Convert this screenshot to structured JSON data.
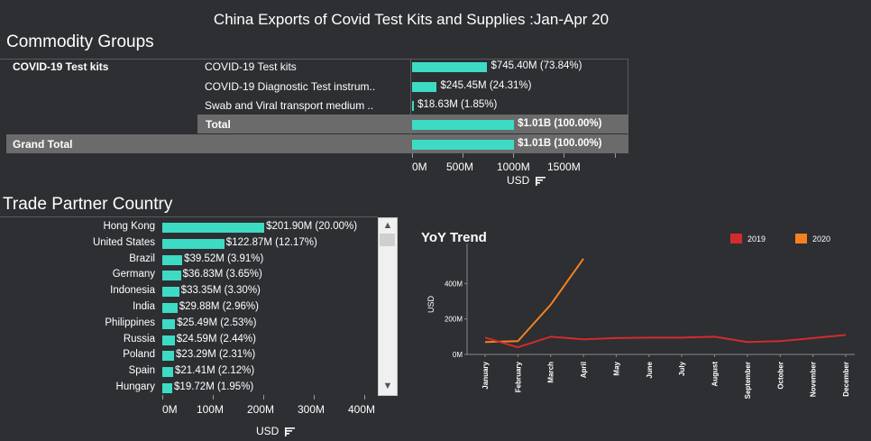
{
  "title": "China Exports of Covid Test Kits and Supplies :Jan-Apr 20",
  "commodity": {
    "section_title": "Commodity Groups",
    "group_label": "COVID-19 Test kits",
    "rows": [
      {
        "label": "COVID-19 Test kits",
        "value": 745.4,
        "text": "$745.40M (73.84%)"
      },
      {
        "label": "COVID-19 Diagnostic Test instrum..",
        "value": 245.45,
        "text": "$245.45M (24.31%)"
      },
      {
        "label": "Swab and Viral transport medium ..",
        "value": 18.63,
        "text": "$18.63M (1.85%)"
      }
    ],
    "total": {
      "label": "Total",
      "value": 1010,
      "text": "$1.01B (100.00%)"
    },
    "grand_total": {
      "label": "Grand Total",
      "value": 1010,
      "text": "$1.01B (100.00%)"
    },
    "axis_ticks": [
      "0M",
      "500M",
      "1000M",
      "1500M"
    ],
    "axis_label": "USD"
  },
  "partner": {
    "section_title": "Trade Partner Country",
    "rows": [
      {
        "label": "Hong Kong",
        "value": 201.9,
        "text": "$201.90M (20.00%)"
      },
      {
        "label": "United States",
        "value": 122.87,
        "text": "$122.87M (12.17%)"
      },
      {
        "label": "Brazil",
        "value": 39.52,
        "text": "$39.52M (3.91%)"
      },
      {
        "label": "Germany",
        "value": 36.83,
        "text": "$36.83M (3.65%)"
      },
      {
        "label": "Indonesia",
        "value": 33.35,
        "text": "$33.35M (3.30%)"
      },
      {
        "label": "India",
        "value": 29.88,
        "text": "$29.88M (2.96%)"
      },
      {
        "label": "Philippines",
        "value": 25.49,
        "text": "$25.49M (2.53%)"
      },
      {
        "label": "Russia",
        "value": 24.59,
        "text": "$24.59M (2.44%)"
      },
      {
        "label": "Poland",
        "value": 23.29,
        "text": "$23.29M (2.31%)"
      },
      {
        "label": "Spain",
        "value": 21.41,
        "text": "$21.41M (2.12%)"
      },
      {
        "label": "Hungary",
        "value": 19.72,
        "text": "$19.72M (1.95%)"
      }
    ],
    "axis_ticks": [
      "0M",
      "100M",
      "200M",
      "300M",
      "400M"
    ],
    "axis_label": "USD"
  },
  "chart_data": {
    "type": "line",
    "title": "YoY Trend",
    "ylabel": "USD",
    "y_ticks": [
      "0M",
      "200M",
      "400M"
    ],
    "ylim": [
      0,
      600
    ],
    "categories": [
      "January",
      "February",
      "March",
      "April",
      "May",
      "June",
      "July",
      "August",
      "September",
      "October",
      "November",
      "December"
    ],
    "series": [
      {
        "name": "2019",
        "color": "#d42b2b",
        "values": [
          95,
          40,
          100,
          85,
          92,
          95,
          95,
          100,
          70,
          75,
          92,
          110
        ]
      },
      {
        "name": "2020",
        "color": "#f5821f",
        "values": [
          70,
          75,
          280,
          540,
          null,
          null,
          null,
          null,
          null,
          null,
          null,
          null
        ]
      }
    ],
    "legend_position": "top-right"
  },
  "colors": {
    "bar": "#3ddbc4",
    "background": "#2d2f33",
    "band": "#6b6b6b"
  },
  "icons": {
    "filter": "sort-filter-icon",
    "scroll_up": "chevron-up-icon",
    "scroll_down": "chevron-down-icon"
  }
}
